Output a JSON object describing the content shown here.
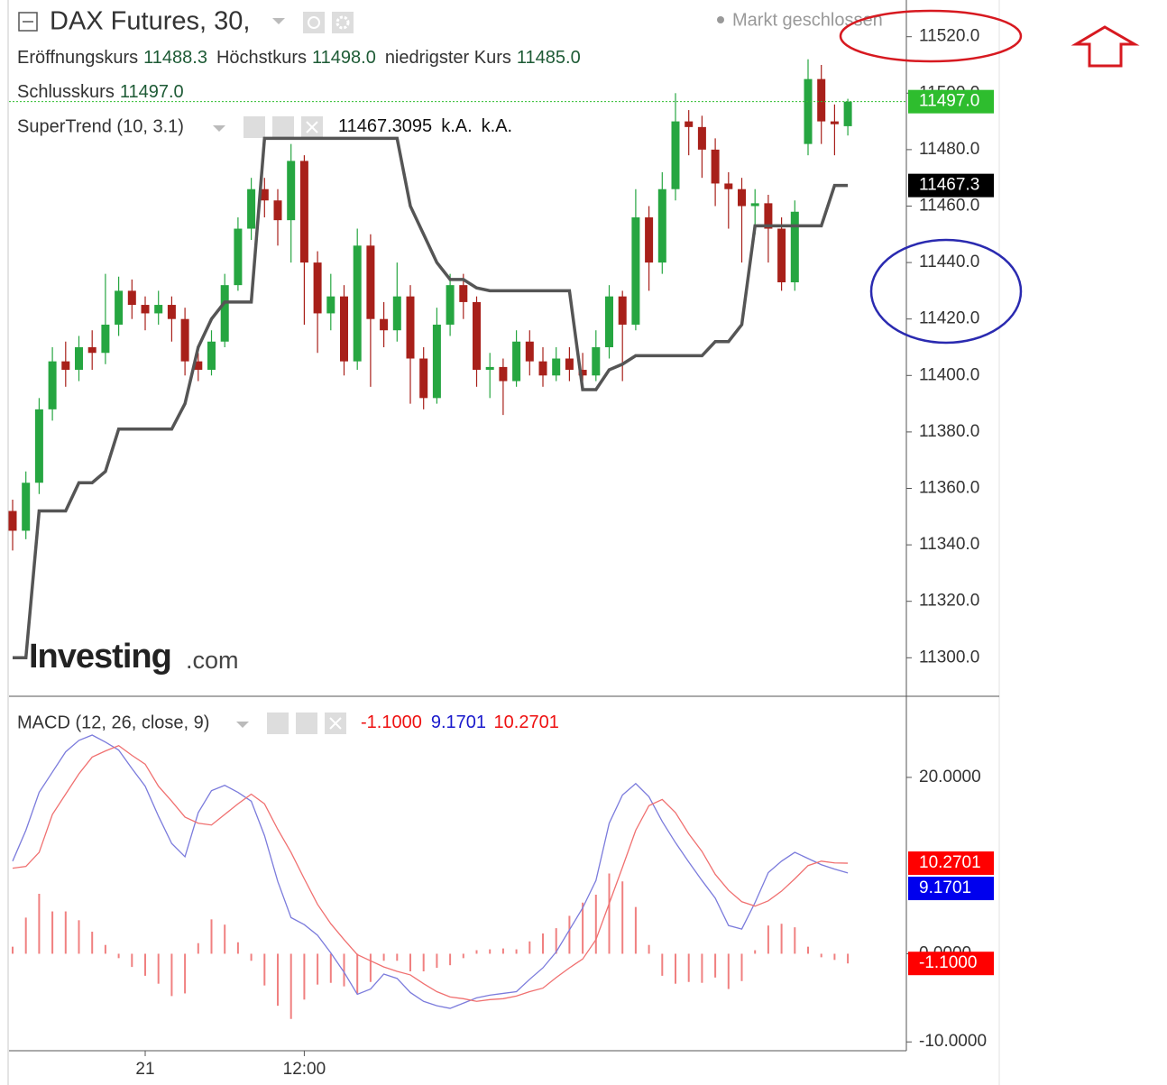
{
  "chart_data": [
    {
      "type": "candlestick",
      "title": "DAX Futures, 30,",
      "status": "Markt geschlossen",
      "ohlc_legend": [
        {
          "label": "Eröffnungskurs",
          "value": "11488.3"
        },
        {
          "label": "Höchstkurs",
          "value": "11498.0"
        },
        {
          "label": "niedrigster Kurs",
          "value": "11485.0"
        },
        {
          "label": "Schlusskurs",
          "value": "11497.0"
        }
      ],
      "open": [
        11352,
        11345,
        11362,
        11388,
        11405,
        11402,
        11410,
        11408,
        11418,
        11430,
        11425,
        11422,
        11425,
        11420,
        11405,
        11402,
        11412,
        11432,
        11452,
        11466,
        11462,
        11455,
        11476,
        11440,
        11422,
        11428,
        11405,
        11446,
        11420,
        11416,
        11428,
        11406,
        11392,
        11418,
        11432,
        11426,
        11402,
        11403,
        11398,
        11412,
        11405,
        11400,
        11406,
        11402,
        11400,
        11410,
        11428,
        11418,
        11456,
        11440,
        11466,
        11490,
        11488,
        11480,
        11468,
        11466,
        11460,
        11461,
        11452,
        11433,
        11482,
        11505,
        11490,
        11488.3
      ],
      "high": [
        11356,
        11366,
        11392,
        11410,
        11412,
        11414,
        11416,
        11436,
        11435,
        11434,
        11428,
        11430,
        11428,
        11424,
        11408,
        11416,
        11436,
        11456,
        11470,
        11470,
        11466,
        11482,
        11478,
        11444,
        11436,
        11432,
        11452,
        11450,
        11426,
        11440,
        11432,
        11410,
        11424,
        11436,
        11436,
        11428,
        11408,
        11406,
        11416,
        11416,
        11410,
        11410,
        11410,
        11408,
        11416,
        11432,
        11430,
        11466,
        11460,
        11472,
        11500,
        11494,
        11492,
        11484,
        11472,
        11470,
        11466,
        11464,
        11456,
        11462,
        11512,
        11510,
        11496,
        11498
      ],
      "low": [
        11338,
        11342,
        11358,
        11384,
        11396,
        11398,
        11402,
        11404,
        11414,
        11420,
        11416,
        11418,
        11412,
        11400,
        11398,
        11400,
        11410,
        11430,
        11448,
        11456,
        11446,
        11440,
        11418,
        11408,
        11416,
        11400,
        11402,
        11396,
        11410,
        11412,
        11390,
        11388,
        11390,
        11414,
        11420,
        11396,
        11392,
        11386,
        11396,
        11400,
        11396,
        11398,
        11398,
        11398,
        11398,
        11406,
        11398,
        11416,
        11430,
        11436,
        11462,
        11478,
        11470,
        11460,
        11452,
        11440,
        11450,
        11440,
        11430,
        11430,
        11478,
        11482,
        11478,
        11485
      ],
      "close": [
        11345,
        11362,
        11388,
        11405,
        11402,
        11410,
        11408,
        11418,
        11430,
        11425,
        11422,
        11425,
        11420,
        11405,
        11402,
        11412,
        11432,
        11452,
        11466,
        11462,
        11455,
        11476,
        11440,
        11422,
        11428,
        11405,
        11446,
        11420,
        11416,
        11428,
        11406,
        11392,
        11418,
        11432,
        11426,
        11402,
        11403,
        11398,
        11412,
        11405,
        11400,
        11406,
        11402,
        11400,
        11410,
        11428,
        11418,
        11456,
        11440,
        11466,
        11490,
        11488,
        11480,
        11468,
        11466,
        11460,
        11461,
        11452,
        11433,
        11458,
        11505,
        11490,
        11489,
        11497
      ],
      "up_color": "#26a641",
      "down_color": "#a8201a",
      "overlay": {
        "name": "SuperTrend (10, 3.1)",
        "legend_values": [
          "11467.3095",
          "k.A.",
          "k.A."
        ],
        "color": "#555555",
        "values": [
          11300,
          11300,
          11352,
          11352,
          11352,
          11362,
          11362,
          11366,
          11381,
          11381,
          11381,
          11381,
          11381,
          11390,
          11410,
          11420,
          11426,
          11426,
          11426,
          11484,
          11484,
          11484,
          11484,
          11484,
          11484,
          11484,
          11484,
          11484,
          11484,
          11484,
          11460,
          11450,
          11440,
          11434,
          11434,
          11431,
          11430,
          11430,
          11430,
          11430,
          11430,
          11430,
          11430,
          11395,
          11395,
          11402,
          11404,
          11407,
          11407,
          11407,
          11407,
          11407,
          11407,
          11412,
          11412,
          11418,
          11453,
          11453,
          11453,
          11453,
          11453,
          11453,
          11467.3095,
          11467.3095
        ]
      },
      "ylim": [
        11287,
        11533
      ],
      "yticks": [
        {
          "value": 11300,
          "label": "11300.0"
        },
        {
          "value": 11320,
          "label": "11320.0"
        },
        {
          "value": 11340,
          "label": "11340.0"
        },
        {
          "value": 11360,
          "label": "11360.0"
        },
        {
          "value": 11380,
          "label": "11380.0"
        },
        {
          "value": 11400,
          "label": "11400.0"
        },
        {
          "value": 11420,
          "label": "11420.0"
        },
        {
          "value": 11440,
          "label": "11440.0"
        },
        {
          "value": 11460,
          "label": "11460.0"
        },
        {
          "value": 11480,
          "label": "11480.0"
        },
        {
          "value": 11500,
          "label": "11500.0"
        },
        {
          "value": 11520,
          "label": "11520.0"
        }
      ],
      "grid": false,
      "price_badges": [
        {
          "value": 11497,
          "label": "11497.0",
          "color": "#2ebd2e",
          "line": true
        },
        {
          "value": 11467.3,
          "label": "11467.3",
          "color": "#000000"
        }
      ],
      "watermark": "Investing",
      "watermark_suffix": ".com"
    },
    {
      "type": "macd",
      "title": "MACD (12, 26, close, 9)",
      "legend_values": [
        {
          "text": "-1.1000",
          "color": "#ee1111"
        },
        {
          "text": "9.1701",
          "color": "#1a1acc"
        },
        {
          "text": "10.2701",
          "color": "#ee1111"
        }
      ],
      "categories": [
        null,
        null,
        null,
        null,
        null,
        null,
        null,
        null,
        null,
        null,
        "21",
        null,
        null,
        null,
        null,
        null,
        null,
        null,
        null,
        null,
        null,
        null,
        "12:00",
        null,
        null,
        null,
        null,
        null,
        null,
        null,
        null,
        null,
        null,
        null,
        null,
        null,
        null,
        null,
        null,
        null,
        null,
        null,
        null,
        null,
        null,
        null,
        null,
        null,
        null,
        null,
        null,
        null,
        null,
        null,
        null,
        null,
        null,
        null,
        null,
        null,
        null,
        null,
        null,
        null
      ],
      "series": [
        {
          "style": "histogram",
          "color": "#f08080",
          "values": [
            0.8,
            4.1,
            6.8,
            4.8,
            4.8,
            3.8,
            2.5,
            1,
            -0.5,
            -1.5,
            -2.5,
            -3.4,
            -4.8,
            -4.5,
            1.2,
            3.9,
            3.3,
            1.3,
            -0.8,
            -3.6,
            -5.9,
            -7.4,
            -5.2,
            -3.5,
            -3.3,
            -3.7,
            -4.5,
            -3.2,
            -0.8,
            -0.8,
            -2,
            -2,
            -1.6,
            -1.3,
            -0.5,
            0.4,
            0.5,
            0.6,
            0.5,
            1.4,
            2.3,
            2.9,
            4.3,
            5.8,
            6.7,
            9.1,
            8.2,
            5.3,
            1,
            -2.5,
            -3.4,
            -3.2,
            -3.3,
            -2.7,
            -4,
            -3.1,
            0.4,
            3.2,
            3.4,
            3,
            0.8,
            -0.4,
            -0.7,
            -1.1
          ]
        },
        {
          "style": "line",
          "color": "#7b7bdc",
          "values": [
            10.5,
            14,
            18.3,
            20.6,
            22.9,
            24.2,
            24.8,
            24,
            23.1,
            21,
            19,
            15.6,
            12.5,
            11,
            16,
            18.5,
            19.1,
            18.3,
            17.3,
            13.4,
            8.2,
            4.1,
            3.3,
            2.1,
            0.1,
            -2.1,
            -4.6,
            -4,
            -2.3,
            -2.8,
            -4.4,
            -5.4,
            -5.9,
            -6.2,
            -5.6,
            -5,
            -4.7,
            -4.5,
            -4.3,
            -2.9,
            -1.6,
            0.2,
            2.7,
            5.2,
            8.3,
            14.8,
            18,
            19.3,
            17.8,
            15,
            12.6,
            10.4,
            8.3,
            6.3,
            3.2,
            2.8,
            5.8,
            9.2,
            10.5,
            11.5,
            10.8,
            10.1,
            9.6,
            9.1701
          ]
        },
        {
          "style": "line",
          "color": "#f07070",
          "values": [
            9.7,
            9.9,
            11.5,
            15.8,
            18.1,
            20.4,
            22.3,
            23,
            23.6,
            22.5,
            21.5,
            19,
            17.3,
            15.5,
            14.8,
            14.6,
            15.8,
            17,
            18.1,
            17,
            14.1,
            11.5,
            8.5,
            5.6,
            3.4,
            1.6,
            -0.1,
            -0.8,
            -1.5,
            -2,
            -2.4,
            -3.4,
            -4.3,
            -4.9,
            -5.1,
            -5.4,
            -5.2,
            -5.1,
            -4.8,
            -4.3,
            -3.9,
            -2.7,
            -1.6,
            -0.6,
            1.6,
            5.7,
            9.8,
            14,
            16.8,
            17.5,
            16,
            13.6,
            11.6,
            9,
            7.2,
            5.9,
            5.4,
            6,
            7.1,
            8.5,
            10,
            10.5,
            10.3,
            10.2701
          ]
        }
      ],
      "ylim": [
        -11,
        29.2
      ],
      "yticks": [
        {
          "value": 20,
          "label": "20.0000"
        },
        {
          "value": 0,
          "label": "0.0000"
        },
        {
          "value": -10,
          "label": "-10.0000"
        }
      ],
      "grid": false,
      "badges": [
        {
          "value": 10.2701,
          "label": "10.2701",
          "color": "#ff0000"
        },
        {
          "value": 9.1701,
          "label": "9.1701",
          "color": "#0000ee"
        },
        {
          "value": -1.1,
          "label": "-1.1000",
          "color": "#ff0000"
        }
      ]
    }
  ]
}
